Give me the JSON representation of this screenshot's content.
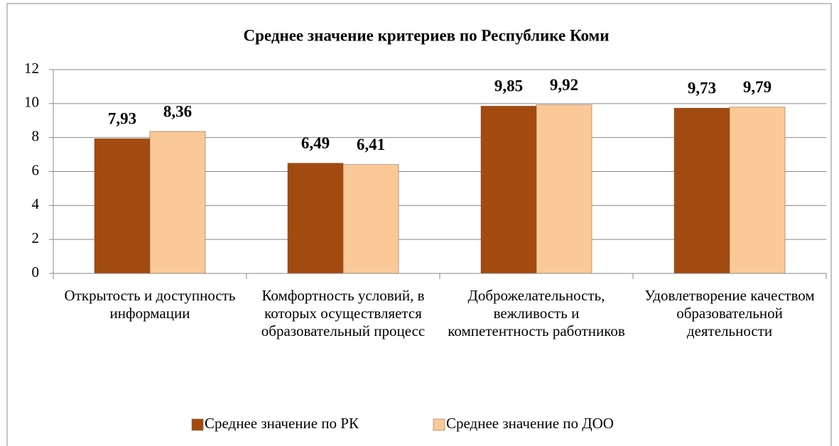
{
  "chart_data": {
    "type": "bar",
    "title": "Среднее значение критериев по Республике Коми",
    "categories": [
      "Открытость и доступность информации",
      "Комфортность условий, в которых осуществляется образовательный процесс",
      "Доброжелательность, вежливость и компетентность работников",
      "Удовлетворение качеством образовательной деятельности"
    ],
    "series": [
      {
        "name": "Среднее значение по РК",
        "color": "#a34a10",
        "values": [
          7.93,
          6.49,
          9.85,
          9.73
        ],
        "value_labels": [
          "7,93",
          "6,49",
          "9,85",
          "9,73"
        ]
      },
      {
        "name": "Среднее значение по ДОО",
        "color": "#fbc998",
        "values": [
          8.36,
          6.41,
          9.92,
          9.79
        ],
        "value_labels": [
          "8,36",
          "6,41",
          "9,92",
          "9,79"
        ]
      }
    ],
    "ylim": [
      0,
      12
    ],
    "yticks": [
      0,
      2,
      4,
      6,
      8,
      10,
      12
    ],
    "grid": true,
    "legend": "bottom"
  }
}
